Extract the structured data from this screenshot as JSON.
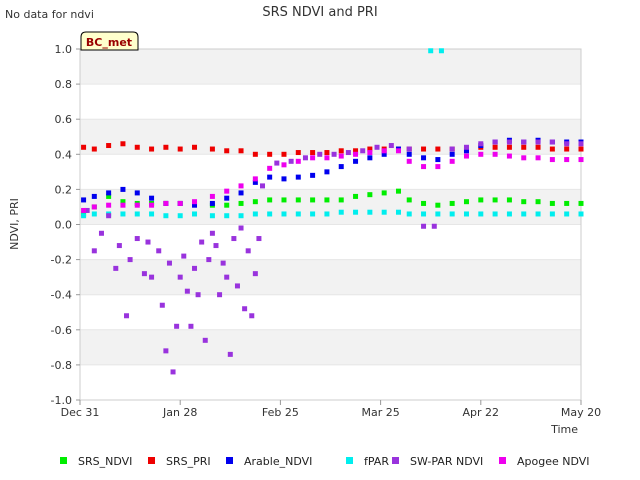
{
  "chart_data": {
    "type": "scatter",
    "title": "SRS NDVI and PRI",
    "note": "No data for ndvi",
    "site_badge": "BC_met",
    "xlabel": "Time",
    "ylabel": "NDVI, PRI",
    "ylim": [
      -1.0,
      1.0
    ],
    "yticks": [
      -1.0,
      -0.8,
      -0.6,
      -0.4,
      -0.2,
      0.0,
      0.2,
      0.4,
      0.6,
      0.8,
      1.0
    ],
    "yticklabels": [
      "-1.0",
      "-0.8",
      "-0.6",
      "-0.4",
      "-0.2",
      "0.0",
      "0.2",
      "0.4",
      "0.6",
      "0.8",
      "1.0"
    ],
    "xlim": [
      "2018-12-31",
      "2019-05-20"
    ],
    "xticks": [
      "2018-12-31",
      "2019-01-28",
      "2019-02-25",
      "2019-03-25",
      "2019-04-22",
      "2019-05-20"
    ],
    "xticklabels": [
      "Dec 31",
      "Jan 28",
      "Feb 25",
      "Mar 25",
      "Apr 22",
      "May 20"
    ],
    "grid": "horizontal bands",
    "legend_position": "bottom",
    "series": [
      {
        "name": "SRS_NDVI",
        "color": "#00ee00",
        "points": [
          [
            "2019-01-01",
            0.06
          ],
          [
            "2019-01-04",
            0.1
          ],
          [
            "2019-01-08",
            0.16
          ],
          [
            "2019-01-12",
            0.13
          ],
          [
            "2019-01-16",
            0.12
          ],
          [
            "2019-01-20",
            0.12
          ],
          [
            "2019-01-24",
            0.12
          ],
          [
            "2019-01-28",
            0.12
          ],
          [
            "2019-02-01",
            0.12
          ],
          [
            "2019-02-06",
            0.11
          ],
          [
            "2019-02-10",
            0.11
          ],
          [
            "2019-02-14",
            0.12
          ],
          [
            "2019-02-18",
            0.13
          ],
          [
            "2019-02-22",
            0.14
          ],
          [
            "2019-02-26",
            0.14
          ],
          [
            "2019-03-02",
            0.14
          ],
          [
            "2019-03-06",
            0.14
          ],
          [
            "2019-03-10",
            0.14
          ],
          [
            "2019-03-14",
            0.14
          ],
          [
            "2019-03-18",
            0.16
          ],
          [
            "2019-03-22",
            0.17
          ],
          [
            "2019-03-26",
            0.18
          ],
          [
            "2019-03-30",
            0.19
          ],
          [
            "2019-04-02",
            0.14
          ],
          [
            "2019-04-06",
            0.12
          ],
          [
            "2019-04-10",
            0.11
          ],
          [
            "2019-04-14",
            0.12
          ],
          [
            "2019-04-18",
            0.13
          ],
          [
            "2019-04-22",
            0.14
          ],
          [
            "2019-04-26",
            0.14
          ],
          [
            "2019-04-30",
            0.14
          ],
          [
            "2019-05-04",
            0.13
          ],
          [
            "2019-05-08",
            0.13
          ],
          [
            "2019-05-12",
            0.12
          ],
          [
            "2019-05-16",
            0.12
          ],
          [
            "2019-05-20",
            0.12
          ]
        ]
      },
      {
        "name": "SRS_PRI",
        "color": "#ee0000",
        "points": [
          [
            "2019-01-01",
            0.44
          ],
          [
            "2019-01-04",
            0.43
          ],
          [
            "2019-01-08",
            0.45
          ],
          [
            "2019-01-12",
            0.46
          ],
          [
            "2019-01-16",
            0.44
          ],
          [
            "2019-01-20",
            0.43
          ],
          [
            "2019-01-24",
            0.44
          ],
          [
            "2019-01-28",
            0.43
          ],
          [
            "2019-02-01",
            0.44
          ],
          [
            "2019-02-06",
            0.43
          ],
          [
            "2019-02-10",
            0.42
          ],
          [
            "2019-02-14",
            0.42
          ],
          [
            "2019-02-18",
            0.4
          ],
          [
            "2019-02-22",
            0.4
          ],
          [
            "2019-02-26",
            0.4
          ],
          [
            "2019-03-02",
            0.41
          ],
          [
            "2019-03-06",
            0.41
          ],
          [
            "2019-03-10",
            0.41
          ],
          [
            "2019-03-14",
            0.42
          ],
          [
            "2019-03-18",
            0.42
          ],
          [
            "2019-03-22",
            0.43
          ],
          [
            "2019-03-26",
            0.43
          ],
          [
            "2019-03-30",
            0.43
          ],
          [
            "2019-04-02",
            0.43
          ],
          [
            "2019-04-06",
            0.43
          ],
          [
            "2019-04-10",
            0.43
          ],
          [
            "2019-04-14",
            0.43
          ],
          [
            "2019-04-18",
            0.43
          ],
          [
            "2019-04-22",
            0.44
          ],
          [
            "2019-04-26",
            0.44
          ],
          [
            "2019-04-30",
            0.44
          ],
          [
            "2019-05-04",
            0.44
          ],
          [
            "2019-05-08",
            0.44
          ],
          [
            "2019-05-12",
            0.43
          ],
          [
            "2019-05-16",
            0.43
          ],
          [
            "2019-05-20",
            0.43
          ]
        ]
      },
      {
        "name": "Arable_NDVI",
        "color": "#0000ee",
        "points": [
          [
            "2019-01-01",
            0.14
          ],
          [
            "2019-01-04",
            0.16
          ],
          [
            "2019-01-08",
            0.18
          ],
          [
            "2019-01-12",
            0.2
          ],
          [
            "2019-01-16",
            0.18
          ],
          [
            "2019-01-20",
            0.15
          ],
          [
            "2019-01-24",
            0.12
          ],
          [
            "2019-01-28",
            0.12
          ],
          [
            "2019-02-01",
            0.11
          ],
          [
            "2019-02-06",
            0.12
          ],
          [
            "2019-02-10",
            0.15
          ],
          [
            "2019-02-14",
            0.18
          ],
          [
            "2019-02-18",
            0.24
          ],
          [
            "2019-02-22",
            0.27
          ],
          [
            "2019-02-26",
            0.26
          ],
          [
            "2019-03-02",
            0.27
          ],
          [
            "2019-03-06",
            0.28
          ],
          [
            "2019-03-10",
            0.3
          ],
          [
            "2019-03-14",
            0.33
          ],
          [
            "2019-03-18",
            0.36
          ],
          [
            "2019-03-22",
            0.38
          ],
          [
            "2019-03-26",
            0.4
          ],
          [
            "2019-03-30",
            0.43
          ],
          [
            "2019-04-02",
            0.4
          ],
          [
            "2019-04-06",
            0.38
          ],
          [
            "2019-04-10",
            0.37
          ],
          [
            "2019-04-14",
            0.4
          ],
          [
            "2019-04-18",
            0.42
          ],
          [
            "2019-04-22",
            0.45
          ],
          [
            "2019-04-26",
            0.47
          ],
          [
            "2019-04-30",
            0.48
          ],
          [
            "2019-05-04",
            0.47
          ],
          [
            "2019-05-08",
            0.48
          ],
          [
            "2019-05-12",
            0.47
          ],
          [
            "2019-05-16",
            0.47
          ],
          [
            "2019-05-20",
            0.47
          ]
        ]
      },
      {
        "name": "fPAR",
        "color": "#00eeee",
        "points": [
          [
            "2019-01-01",
            0.05
          ],
          [
            "2019-01-04",
            0.06
          ],
          [
            "2019-01-08",
            0.06
          ],
          [
            "2019-01-12",
            0.06
          ],
          [
            "2019-01-16",
            0.06
          ],
          [
            "2019-01-20",
            0.06
          ],
          [
            "2019-01-24",
            0.05
          ],
          [
            "2019-01-28",
            0.05
          ],
          [
            "2019-02-01",
            0.06
          ],
          [
            "2019-02-06",
            0.05
          ],
          [
            "2019-02-10",
            0.05
          ],
          [
            "2019-02-14",
            0.05
          ],
          [
            "2019-02-18",
            0.06
          ],
          [
            "2019-02-22",
            0.06
          ],
          [
            "2019-02-26",
            0.06
          ],
          [
            "2019-03-02",
            0.06
          ],
          [
            "2019-03-06",
            0.06
          ],
          [
            "2019-03-10",
            0.06
          ],
          [
            "2019-03-14",
            0.07
          ],
          [
            "2019-03-18",
            0.07
          ],
          [
            "2019-03-22",
            0.07
          ],
          [
            "2019-03-26",
            0.07
          ],
          [
            "2019-03-30",
            0.07
          ],
          [
            "2019-04-02",
            0.06
          ],
          [
            "2019-04-06",
            0.06
          ],
          [
            "2019-04-10",
            0.06
          ],
          [
            "2019-04-14",
            0.06
          ],
          [
            "2019-04-18",
            0.06
          ],
          [
            "2019-04-22",
            0.06
          ],
          [
            "2019-04-26",
            0.06
          ],
          [
            "2019-04-30",
            0.06
          ],
          [
            "2019-05-04",
            0.06
          ],
          [
            "2019-05-08",
            0.06
          ],
          [
            "2019-05-12",
            0.06
          ],
          [
            "2019-05-16",
            0.06
          ],
          [
            "2019-05-20",
            0.06
          ],
          [
            "2019-04-08",
            0.99
          ],
          [
            "2019-04-11",
            0.99
          ]
        ]
      },
      {
        "name": "SW-PAR NDVI",
        "color": "#9933dd",
        "points": [
          [
            "2019-01-02",
            0.08
          ],
          [
            "2019-01-04",
            -0.15
          ],
          [
            "2019-01-06",
            -0.05
          ],
          [
            "2019-01-08",
            0.05
          ],
          [
            "2019-01-10",
            -0.25
          ],
          [
            "2019-01-11",
            -0.12
          ],
          [
            "2019-01-13",
            -0.52
          ],
          [
            "2019-01-14",
            -0.2
          ],
          [
            "2019-01-16",
            -0.08
          ],
          [
            "2019-01-18",
            -0.28
          ],
          [
            "2019-01-19",
            -0.1
          ],
          [
            "2019-01-20",
            -0.3
          ],
          [
            "2019-01-22",
            -0.15
          ],
          [
            "2019-01-23",
            -0.46
          ],
          [
            "2019-01-24",
            -0.72
          ],
          [
            "2019-01-25",
            -0.22
          ],
          [
            "2019-01-26",
            -0.84
          ],
          [
            "2019-01-27",
            -0.58
          ],
          [
            "2019-01-28",
            -0.3
          ],
          [
            "2019-01-29",
            -0.18
          ],
          [
            "2019-01-30",
            -0.38
          ],
          [
            "2019-01-31",
            -0.58
          ],
          [
            "2019-02-01",
            -0.25
          ],
          [
            "2019-02-02",
            -0.4
          ],
          [
            "2019-02-03",
            -0.1
          ],
          [
            "2019-02-04",
            -0.66
          ],
          [
            "2019-02-05",
            -0.2
          ],
          [
            "2019-02-06",
            -0.05
          ],
          [
            "2019-02-07",
            -0.12
          ],
          [
            "2019-02-08",
            -0.4
          ],
          [
            "2019-02-09",
            -0.22
          ],
          [
            "2019-02-10",
            -0.3
          ],
          [
            "2019-02-11",
            -0.74
          ],
          [
            "2019-02-12",
            -0.08
          ],
          [
            "2019-02-13",
            -0.35
          ],
          [
            "2019-02-14",
            -0.02
          ],
          [
            "2019-02-15",
            -0.48
          ],
          [
            "2019-02-16",
            -0.15
          ],
          [
            "2019-02-17",
            -0.52
          ],
          [
            "2019-02-18",
            -0.28
          ],
          [
            "2019-02-19",
            -0.08
          ],
          [
            "2019-02-20",
            0.22
          ],
          [
            "2019-02-24",
            0.35
          ],
          [
            "2019-02-28",
            0.36
          ],
          [
            "2019-03-04",
            0.38
          ],
          [
            "2019-03-08",
            0.4
          ],
          [
            "2019-03-12",
            0.4
          ],
          [
            "2019-03-16",
            0.41
          ],
          [
            "2019-03-20",
            0.42
          ],
          [
            "2019-03-24",
            0.44
          ],
          [
            "2019-03-28",
            0.45
          ],
          [
            "2019-04-02",
            0.43
          ],
          [
            "2019-04-06",
            -0.01
          ],
          [
            "2019-04-09",
            -0.01
          ],
          [
            "2019-04-14",
            0.43
          ],
          [
            "2019-04-18",
            0.44
          ],
          [
            "2019-04-22",
            0.46
          ],
          [
            "2019-04-26",
            0.47
          ],
          [
            "2019-04-30",
            0.47
          ],
          [
            "2019-05-04",
            0.47
          ],
          [
            "2019-05-08",
            0.47
          ],
          [
            "2019-05-12",
            0.47
          ],
          [
            "2019-05-16",
            0.46
          ],
          [
            "2019-05-20",
            0.46
          ]
        ]
      },
      {
        "name": "Apogee NDVI",
        "color": "#ee00ee",
        "points": [
          [
            "2019-01-01",
            0.08
          ],
          [
            "2019-01-04",
            0.1
          ],
          [
            "2019-01-08",
            0.11
          ],
          [
            "2019-01-12",
            0.11
          ],
          [
            "2019-01-16",
            0.11
          ],
          [
            "2019-01-20",
            0.11
          ],
          [
            "2019-01-24",
            0.12
          ],
          [
            "2019-01-28",
            0.12
          ],
          [
            "2019-02-01",
            0.13
          ],
          [
            "2019-02-06",
            0.16
          ],
          [
            "2019-02-10",
            0.19
          ],
          [
            "2019-02-14",
            0.22
          ],
          [
            "2019-02-18",
            0.26
          ],
          [
            "2019-02-22",
            0.32
          ],
          [
            "2019-02-26",
            0.34
          ],
          [
            "2019-03-02",
            0.36
          ],
          [
            "2019-03-06",
            0.38
          ],
          [
            "2019-03-10",
            0.38
          ],
          [
            "2019-03-14",
            0.39
          ],
          [
            "2019-03-18",
            0.4
          ],
          [
            "2019-03-22",
            0.41
          ],
          [
            "2019-03-26",
            0.42
          ],
          [
            "2019-03-30",
            0.42
          ],
          [
            "2019-04-02",
            0.36
          ],
          [
            "2019-04-06",
            0.33
          ],
          [
            "2019-04-10",
            0.33
          ],
          [
            "2019-04-14",
            0.36
          ],
          [
            "2019-04-18",
            0.39
          ],
          [
            "2019-04-22",
            0.4
          ],
          [
            "2019-04-26",
            0.4
          ],
          [
            "2019-04-30",
            0.39
          ],
          [
            "2019-05-04",
            0.38
          ],
          [
            "2019-05-08",
            0.38
          ],
          [
            "2019-05-12",
            0.37
          ],
          [
            "2019-05-16",
            0.37
          ],
          [
            "2019-05-20",
            0.37
          ]
        ]
      }
    ]
  }
}
